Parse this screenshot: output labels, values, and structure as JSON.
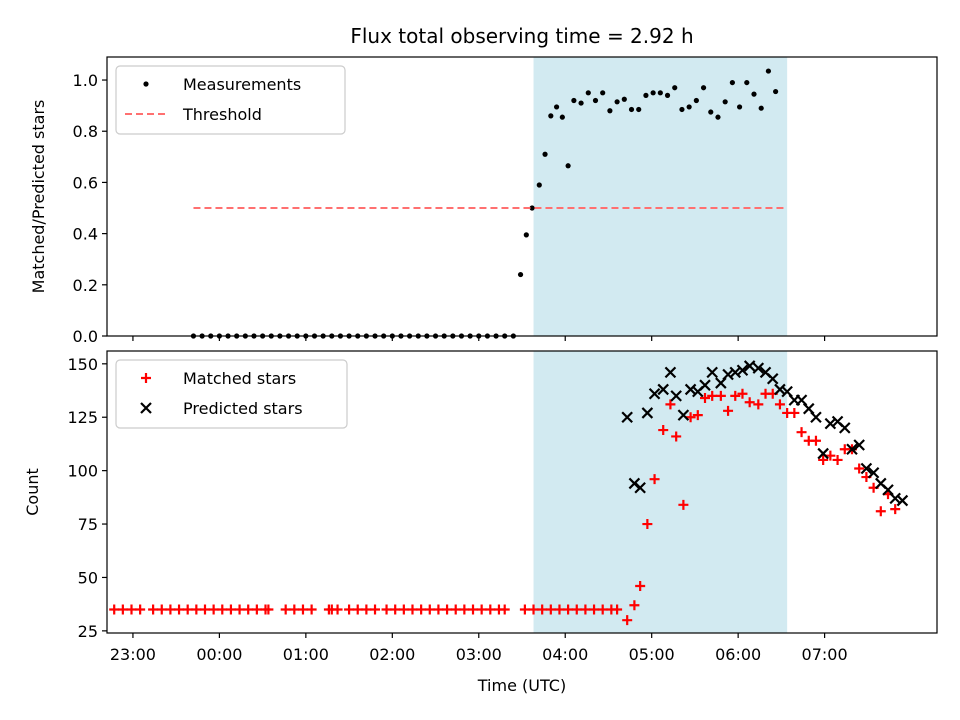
{
  "title": "Flux total observing time = 2.92 h",
  "chart_data": [
    {
      "type": "scatter",
      "ylabel": "Matched/Predicted stars",
      "xlabel": "",
      "xlim": [
        -78,
        498
      ],
      "ylim": [
        0,
        1.09
      ],
      "yticks": [
        "0.0",
        "0.2",
        "0.4",
        "0.6",
        "0.8",
        "1.0"
      ],
      "ytick_values": [
        0,
        0.2,
        0.4,
        0.6,
        0.8,
        1.0
      ],
      "span": [
        218,
        394
      ],
      "span_color": "#add8e6",
      "legend_position": "upper-left",
      "series": [
        {
          "name": "Measurements",
          "marker": "dot",
          "color": "#000000",
          "points": [
            [
              -18,
              0
            ],
            [
              -12,
              0
            ],
            [
              -6,
              0
            ],
            [
              0,
              0
            ],
            [
              6,
              0
            ],
            [
              12,
              0
            ],
            [
              18,
              0
            ],
            [
              24,
              0
            ],
            [
              30,
              0
            ],
            [
              36,
              0
            ],
            [
              42,
              0
            ],
            [
              48,
              0
            ],
            [
              54,
              0
            ],
            [
              60,
              0
            ],
            [
              66,
              0
            ],
            [
              72,
              0
            ],
            [
              78,
              0
            ],
            [
              84,
              0
            ],
            [
              90,
              0
            ],
            [
              96,
              0
            ],
            [
              102,
              0
            ],
            [
              108,
              0
            ],
            [
              114,
              0
            ],
            [
              120,
              0
            ],
            [
              126,
              0
            ],
            [
              132,
              0
            ],
            [
              138,
              0
            ],
            [
              144,
              0
            ],
            [
              150,
              0
            ],
            [
              156,
              0
            ],
            [
              162,
              0
            ],
            [
              168,
              0
            ],
            [
              174,
              0
            ],
            [
              180,
              0
            ],
            [
              186,
              0
            ],
            [
              192,
              0
            ],
            [
              198,
              0
            ],
            [
              204,
              0
            ],
            [
              209,
              0.24
            ],
            [
              213,
              0.395
            ],
            [
              217,
              0.5
            ],
            [
              222,
              0.59
            ],
            [
              226,
              0.71
            ],
            [
              230,
              0.86
            ],
            [
              234,
              0.895
            ],
            [
              238,
              0.855
            ],
            [
              242,
              0.665
            ],
            [
              246,
              0.92
            ],
            [
              251,
              0.91
            ],
            [
              256,
              0.95
            ],
            [
              261,
              0.92
            ],
            [
              266,
              0.95
            ],
            [
              271,
              0.88
            ],
            [
              276,
              0.915
            ],
            [
              281,
              0.925
            ],
            [
              286,
              0.885
            ],
            [
              291,
              0.885
            ],
            [
              296,
              0.94
            ],
            [
              301,
              0.95
            ],
            [
              306,
              0.95
            ],
            [
              311,
              0.94
            ],
            [
              316,
              0.97
            ],
            [
              321,
              0.885
            ],
            [
              326,
              0.895
            ],
            [
              331,
              0.92
            ],
            [
              336,
              0.97
            ],
            [
              341,
              0.875
            ],
            [
              346,
              0.855
            ],
            [
              351,
              0.915
            ],
            [
              356,
              0.99
            ],
            [
              361,
              0.895
            ],
            [
              366,
              0.99
            ],
            [
              371,
              0.945
            ],
            [
              376,
              0.89
            ],
            [
              381,
              1.035
            ],
            [
              386,
              0.955
            ]
          ]
        },
        {
          "name": "Threshold",
          "type": "line",
          "style": "dashed",
          "color": "#ff7070",
          "points": [
            [
              -18,
              0.5
            ],
            [
              394,
              0.5
            ]
          ]
        }
      ]
    },
    {
      "type": "scatter",
      "ylabel": "Count",
      "xlabel": "Time (UTC)",
      "xlim": [
        -78,
        498
      ],
      "ylim": [
        24,
        156
      ],
      "yticks": [
        "25",
        "50",
        "75",
        "100",
        "125",
        "150"
      ],
      "ytick_values": [
        25,
        50,
        75,
        100,
        125,
        150
      ],
      "xticks": [
        "23:00",
        "00:00",
        "01:00",
        "02:00",
        "03:00",
        "04:00",
        "05:00",
        "06:00",
        "07:00"
      ],
      "xtick_values": [
        -60,
        0,
        60,
        120,
        180,
        240,
        300,
        360,
        420
      ],
      "span": [
        218,
        394
      ],
      "span_color": "#add8e6",
      "legend_position": "upper-left",
      "series": [
        {
          "name": "Matched stars",
          "marker": "plus",
          "color": "#ff0000",
          "points": [
            [
              -73,
              35
            ],
            [
              -67,
              35
            ],
            [
              -61,
              35
            ],
            [
              -55,
              35
            ],
            [
              -46,
              35
            ],
            [
              -40,
              35
            ],
            [
              -34,
              35
            ],
            [
              -28,
              35
            ],
            [
              -22,
              35
            ],
            [
              -16,
              35
            ],
            [
              -10,
              35
            ],
            [
              -4,
              35
            ],
            [
              2,
              35
            ],
            [
              8,
              35
            ],
            [
              14,
              35
            ],
            [
              20,
              35
            ],
            [
              26,
              35
            ],
            [
              32,
              35
            ],
            [
              34,
              35
            ],
            [
              46,
              35
            ],
            [
              52,
              35
            ],
            [
              58,
              35
            ],
            [
              64,
              35
            ],
            [
              76,
              35
            ],
            [
              78,
              35
            ],
            [
              82,
              35
            ],
            [
              90,
              35
            ],
            [
              96,
              35
            ],
            [
              102,
              35
            ],
            [
              108,
              35
            ],
            [
              116,
              35
            ],
            [
              122,
              35
            ],
            [
              128,
              35
            ],
            [
              134,
              35
            ],
            [
              140,
              35
            ],
            [
              146,
              35
            ],
            [
              152,
              35
            ],
            [
              158,
              35
            ],
            [
              164,
              35
            ],
            [
              170,
              35
            ],
            [
              176,
              35
            ],
            [
              182,
              35
            ],
            [
              188,
              35
            ],
            [
              194,
              35
            ],
            [
              198,
              35
            ],
            [
              212,
              35
            ],
            [
              218,
              35
            ],
            [
              224,
              35
            ],
            [
              230,
              35
            ],
            [
              236,
              35
            ],
            [
              242,
              35
            ],
            [
              248,
              35
            ],
            [
              254,
              35
            ],
            [
              260,
              35
            ],
            [
              266,
              35
            ],
            [
              272,
              35
            ],
            [
              276,
              35
            ],
            [
              283,
              30
            ],
            [
              288,
              37
            ],
            [
              292,
              46
            ],
            [
              297,
              75
            ],
            [
              302,
              96
            ],
            [
              308,
              119
            ],
            [
              313,
              131
            ],
            [
              317,
              116
            ],
            [
              322,
              84
            ],
            [
              327,
              125
            ],
            [
              332,
              126
            ],
            [
              337,
              134
            ],
            [
              342,
              135
            ],
            [
              348,
              135
            ],
            [
              353,
              128
            ],
            [
              358,
              135
            ],
            [
              363,
              136
            ],
            [
              368,
              132
            ],
            [
              374,
              131
            ],
            [
              379,
              136
            ],
            [
              384,
              136
            ],
            [
              389,
              131
            ],
            [
              394,
              127
            ],
            [
              399,
              127
            ],
            [
              404,
              118
            ],
            [
              409,
              114
            ],
            [
              414,
              114
            ],
            [
              419,
              105
            ],
            [
              424,
              107
            ],
            [
              429,
              105
            ],
            [
              434,
              110
            ],
            [
              439,
              110
            ],
            [
              444,
              101
            ],
            [
              449,
              97
            ],
            [
              454,
              92
            ],
            [
              459,
              81
            ],
            [
              464,
              89
            ],
            [
              469,
              82
            ]
          ]
        },
        {
          "name": "Predicted stars",
          "marker": "x",
          "color": "#000000",
          "points": [
            [
              283,
              125
            ],
            [
              288,
              94
            ],
            [
              292,
              92
            ],
            [
              297,
              127
            ],
            [
              302,
              136
            ],
            [
              308,
              138
            ],
            [
              313,
              146
            ],
            [
              317,
              135
            ],
            [
              322,
              126
            ],
            [
              327,
              138
            ],
            [
              332,
              137
            ],
            [
              337,
              140
            ],
            [
              342,
              146
            ],
            [
              348,
              141
            ],
            [
              353,
              145
            ],
            [
              358,
              146
            ],
            [
              363,
              147
            ],
            [
              368,
              149
            ],
            [
              374,
              148
            ],
            [
              379,
              146
            ],
            [
              384,
              143
            ],
            [
              389,
              138
            ],
            [
              394,
              137
            ],
            [
              399,
              133
            ],
            [
              404,
              133
            ],
            [
              409,
              129
            ],
            [
              414,
              125
            ],
            [
              419,
              108
            ],
            [
              424,
              122
            ],
            [
              429,
              123
            ],
            [
              434,
              120
            ],
            [
              439,
              110
            ],
            [
              444,
              112
            ],
            [
              449,
              101
            ],
            [
              454,
              99
            ],
            [
              459,
              94
            ],
            [
              464,
              91
            ],
            [
              469,
              87
            ],
            [
              474,
              86
            ]
          ]
        }
      ]
    }
  ]
}
